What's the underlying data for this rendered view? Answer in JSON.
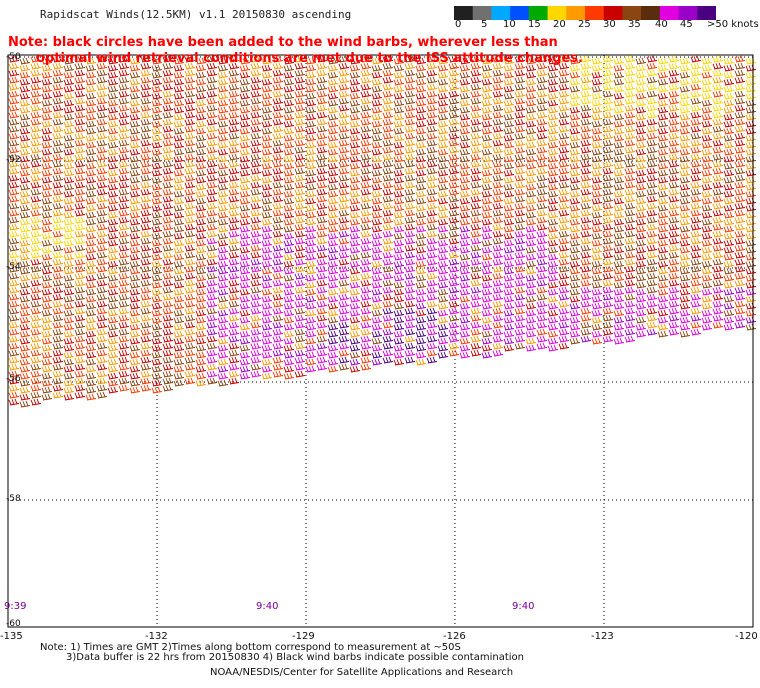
{
  "title": "Rapidscat Winds(12.5KM) v1.1 20150830 ascending",
  "note_lines": [
    "Note: black circles have been added to the wind barbs, wherever less than",
    "optimal wind retrieval conditions are met due to the ISS attitude changes."
  ],
  "colorbar": {
    "labels": [
      "0",
      "5",
      "10",
      "15",
      "20",
      "25",
      "30",
      "35",
      "40",
      "45",
      ">50 knots"
    ],
    "colors": [
      "#202020",
      "#707070",
      "#00a8ff",
      "#0050ff",
      "#00aa00",
      "#ffd700",
      "#ff9a00",
      "#ff3a00",
      "#c80000",
      "#8b4513",
      "#5a2d0c",
      "#e000e0",
      "#9a00c8",
      "#4a0080"
    ]
  },
  "lat_labels": [
    "-50",
    "-52",
    "-54",
    "-56",
    "-58",
    "-60"
  ],
  "lon_labels": [
    "-135",
    "-132",
    "-129",
    "-126",
    "-123",
    "-120"
  ],
  "time_labels": [
    "9:39",
    "9:40",
    "9:40"
  ],
  "footer": {
    "line1": "Note: 1) Times are GMT 2)Times along bottom correspond to measurement at ~50S",
    "line2": "3)Data buffer is 22 hrs from 20150830 4) Black wind barbs indicate possible contamination",
    "line3": "NOAA/NESDIS/Center for Satellite Applications and Research"
  }
}
